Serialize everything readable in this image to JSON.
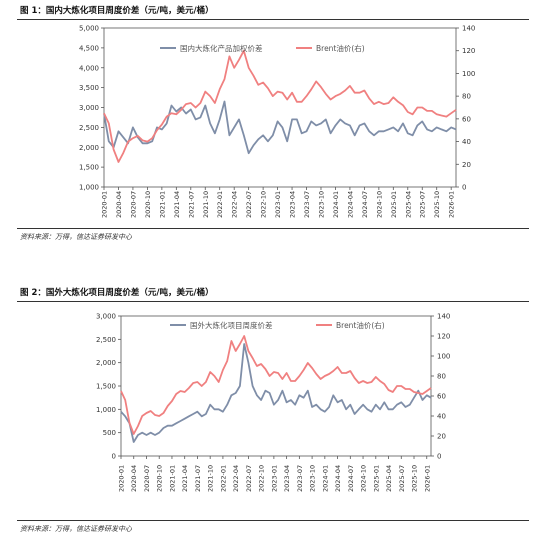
{
  "figures": [
    {
      "title": "图 1：国内大炼化项目周度价差（元/吨，美元/桶）",
      "source": "资料来源：万得，信达证券研发中心"
    },
    {
      "title": "图 2：国外大炼化项目周度价差（元/吨，美元/桶）",
      "source": "资料来源：万得，信达证券研发中心"
    }
  ],
  "chart_data": [
    {
      "type": "line",
      "title": "",
      "xlabel": "",
      "ylabel": "",
      "x_ticks": [
        "2020-01",
        "2020-04",
        "2020-07",
        "2020-10",
        "2021-01",
        "2021-04",
        "2021-07",
        "2021-10",
        "2022-01",
        "2022-04",
        "2022-07",
        "2022-10",
        "2023-01",
        "2023-04",
        "2023-07",
        "2023-10",
        "2024-01",
        "2024-04",
        "2024-07",
        "2024-10",
        "2025-01",
        "2025-04",
        "2025-07",
        "2025-10",
        "2026-01"
      ],
      "x_range": [
        "2020-01",
        "2026-02"
      ],
      "ylim_left": [
        1000,
        5000
      ],
      "yticks_left": [
        "1,000",
        "1,500",
        "2,000",
        "2,500",
        "3,000",
        "3,500",
        "4,000",
        "4,500",
        "5,000"
      ],
      "ylim_right": [
        0,
        140
      ],
      "yticks_right": [
        "0",
        "20",
        "40",
        "60",
        "80",
        "100",
        "120",
        "140"
      ],
      "grid": false,
      "legend": "top",
      "series": [
        {
          "name": "国内大炼化产品加权价差",
          "axis": "left",
          "color": "#7f8ea8",
          "x": [
            "2020-01",
            "2020-02",
            "2020-03",
            "2020-04",
            "2020-05",
            "2020-06",
            "2020-07",
            "2020-08",
            "2020-09",
            "2020-10",
            "2020-11",
            "2020-12",
            "2021-01",
            "2021-02",
            "2021-03",
            "2021-04",
            "2021-05",
            "2021-06",
            "2021-07",
            "2021-08",
            "2021-09",
            "2021-10",
            "2021-11",
            "2021-12",
            "2022-01",
            "2022-02",
            "2022-03",
            "2022-04",
            "2022-05",
            "2022-06",
            "2022-07",
            "2022-08",
            "2022-09",
            "2022-10",
            "2022-11",
            "2022-12",
            "2023-01",
            "2023-02",
            "2023-03",
            "2023-04",
            "2023-05",
            "2023-06",
            "2023-07",
            "2023-08",
            "2023-09",
            "2023-10",
            "2023-11",
            "2023-12",
            "2024-01",
            "2024-02",
            "2024-03",
            "2024-04",
            "2024-05",
            "2024-06",
            "2024-07",
            "2024-08",
            "2024-09",
            "2024-10",
            "2024-11",
            "2024-12",
            "2025-01",
            "2025-02",
            "2025-03",
            "2025-04",
            "2025-05",
            "2025-06",
            "2025-07",
            "2025-08",
            "2025-09",
            "2025-10",
            "2025-11",
            "2025-12",
            "2026-01",
            "2026-02"
          ],
          "values": [
            2850,
            2150,
            2000,
            2400,
            2250,
            2100,
            2500,
            2250,
            2100,
            2100,
            2150,
            2500,
            2450,
            2600,
            3050,
            2900,
            3000,
            2850,
            2950,
            2700,
            2750,
            3050,
            2600,
            2350,
            2700,
            3150,
            2300,
            2500,
            2700,
            2300,
            1850,
            2050,
            2200,
            2300,
            2150,
            2300,
            2650,
            2500,
            2150,
            2700,
            2700,
            2350,
            2400,
            2650,
            2550,
            2600,
            2700,
            2350,
            2550,
            2700,
            2600,
            2550,
            2300,
            2550,
            2600,
            2400,
            2300,
            2400,
            2400,
            2450,
            2500,
            2400,
            2600,
            2350,
            2300,
            2550,
            2650,
            2450,
            2400,
            2500,
            2450,
            2400,
            2500,
            2450
          ]
        },
        {
          "name": "Brent油价(右)",
          "axis": "right",
          "color": "#f08080",
          "x": [
            "2020-01",
            "2020-02",
            "2020-03",
            "2020-04",
            "2020-05",
            "2020-06",
            "2020-07",
            "2020-08",
            "2020-09",
            "2020-10",
            "2020-11",
            "2020-12",
            "2021-01",
            "2021-02",
            "2021-03",
            "2021-04",
            "2021-05",
            "2021-06",
            "2021-07",
            "2021-08",
            "2021-09",
            "2021-10",
            "2021-11",
            "2021-12",
            "2022-01",
            "2022-02",
            "2022-03",
            "2022-04",
            "2022-05",
            "2022-06",
            "2022-07",
            "2022-08",
            "2022-09",
            "2022-10",
            "2022-11",
            "2022-12",
            "2023-01",
            "2023-02",
            "2023-03",
            "2023-04",
            "2023-05",
            "2023-06",
            "2023-07",
            "2023-08",
            "2023-09",
            "2023-10",
            "2023-11",
            "2023-12",
            "2024-01",
            "2024-02",
            "2024-03",
            "2024-04",
            "2024-05",
            "2024-06",
            "2024-07",
            "2024-08",
            "2024-09",
            "2024-10",
            "2024-11",
            "2024-12",
            "2025-01",
            "2025-02",
            "2025-03",
            "2025-04",
            "2025-05",
            "2025-06",
            "2025-07",
            "2025-08",
            "2025-09",
            "2025-10",
            "2025-11",
            "2025-12",
            "2026-01",
            "2026-02"
          ],
          "values": [
            65,
            56,
            33,
            22,
            30,
            40,
            43,
            45,
            41,
            40,
            43,
            50,
            55,
            62,
            65,
            64,
            68,
            73,
            74,
            70,
            74,
            84,
            80,
            74,
            86,
            95,
            115,
            105,
            112,
            120,
            105,
            98,
            90,
            92,
            87,
            80,
            84,
            83,
            77,
            83,
            75,
            75,
            80,
            86,
            93,
            88,
            82,
            77,
            80,
            82,
            85,
            89,
            83,
            83,
            85,
            78,
            73,
            75,
            73,
            74,
            79,
            75,
            72,
            66,
            64,
            70,
            70,
            67,
            67,
            64,
            63,
            62,
            65,
            68
          ]
        }
      ]
    },
    {
      "type": "line",
      "title": "",
      "xlabel": "",
      "ylabel": "",
      "x_ticks": [
        "2020-01",
        "2020-04",
        "2020-07",
        "2020-10",
        "2021-01",
        "2021-04",
        "2021-07",
        "2021-10",
        "2022-01",
        "2022-04",
        "2022-07",
        "2022-10",
        "2023-01",
        "2023-04",
        "2023-07",
        "2023-10",
        "2024-01",
        "2024-04",
        "2024-07",
        "2024-10",
        "2025-01",
        "2025-04",
        "2025-07",
        "2025-10",
        "2026-01"
      ],
      "x_range": [
        "2020-01",
        "2026-02"
      ],
      "ylim_left": [
        0,
        3000
      ],
      "yticks_left": [
        "0",
        "500",
        "1,000",
        "1,500",
        "2,000",
        "2,500",
        "3,000"
      ],
      "ylim_right": [
        0,
        140
      ],
      "yticks_right": [
        "0",
        "20",
        "40",
        "60",
        "80",
        "100",
        "120",
        "140"
      ],
      "grid": false,
      "legend": "top",
      "series": [
        {
          "name": "国外大炼化项目周度价差",
          "axis": "left",
          "color": "#7f8ea8",
          "x": [
            "2020-01",
            "2020-02",
            "2020-03",
            "2020-04",
            "2020-05",
            "2020-06",
            "2020-07",
            "2020-08",
            "2020-09",
            "2020-10",
            "2020-11",
            "2020-12",
            "2021-01",
            "2021-02",
            "2021-03",
            "2021-04",
            "2021-05",
            "2021-06",
            "2021-07",
            "2021-08",
            "2021-09",
            "2021-10",
            "2021-11",
            "2021-12",
            "2022-01",
            "2022-02",
            "2022-03",
            "2022-04",
            "2022-05",
            "2022-06",
            "2022-07",
            "2022-08",
            "2022-09",
            "2022-10",
            "2022-11",
            "2022-12",
            "2023-01",
            "2023-02",
            "2023-03",
            "2023-04",
            "2023-05",
            "2023-06",
            "2023-07",
            "2023-08",
            "2023-09",
            "2023-10",
            "2023-11",
            "2023-12",
            "2024-01",
            "2024-02",
            "2024-03",
            "2024-04",
            "2024-05",
            "2024-06",
            "2024-07",
            "2024-08",
            "2024-09",
            "2024-10",
            "2024-11",
            "2024-12",
            "2025-01",
            "2025-02",
            "2025-03",
            "2025-04",
            "2025-05",
            "2025-06",
            "2025-07",
            "2025-08",
            "2025-09",
            "2025-10",
            "2025-11",
            "2025-12",
            "2026-01",
            "2026-02"
          ],
          "values": [
            950,
            850,
            700,
            300,
            450,
            500,
            450,
            500,
            450,
            500,
            600,
            650,
            650,
            700,
            750,
            800,
            850,
            900,
            950,
            850,
            900,
            1100,
            1000,
            1000,
            950,
            1100,
            1300,
            1350,
            1500,
            2400,
            2000,
            1500,
            1300,
            1200,
            1400,
            1350,
            1100,
            1200,
            1400,
            1150,
            1200,
            1100,
            1300,
            1250,
            1400,
            1050,
            1100,
            1000,
            950,
            1050,
            1300,
            1150,
            1200,
            1000,
            1100,
            900,
            1000,
            1100,
            1000,
            950,
            1100,
            1000,
            1150,
            1000,
            1000,
            1100,
            1150,
            1050,
            1100,
            1250,
            1400,
            1200,
            1300,
            1250
          ]
        },
        {
          "name": "Brent油价(右)",
          "axis": "right",
          "color": "#f08080",
          "x": [
            "2020-01",
            "2020-02",
            "2020-03",
            "2020-04",
            "2020-05",
            "2020-06",
            "2020-07",
            "2020-08",
            "2020-09",
            "2020-10",
            "2020-11",
            "2020-12",
            "2021-01",
            "2021-02",
            "2021-03",
            "2021-04",
            "2021-05",
            "2021-06",
            "2021-07",
            "2021-08",
            "2021-09",
            "2021-10",
            "2021-11",
            "2021-12",
            "2022-01",
            "2022-02",
            "2022-03",
            "2022-04",
            "2022-05",
            "2022-06",
            "2022-07",
            "2022-08",
            "2022-09",
            "2022-10",
            "2022-11",
            "2022-12",
            "2023-01",
            "2023-02",
            "2023-03",
            "2023-04",
            "2023-05",
            "2023-06",
            "2023-07",
            "2023-08",
            "2023-09",
            "2023-10",
            "2023-11",
            "2023-12",
            "2024-01",
            "2024-02",
            "2024-03",
            "2024-04",
            "2024-05",
            "2024-06",
            "2024-07",
            "2024-08",
            "2024-09",
            "2024-10",
            "2024-11",
            "2024-12",
            "2025-01",
            "2025-02",
            "2025-03",
            "2025-04",
            "2025-05",
            "2025-06",
            "2025-07",
            "2025-08",
            "2025-09",
            "2025-10",
            "2025-11",
            "2025-12",
            "2026-01",
            "2026-02"
          ],
          "values": [
            65,
            56,
            33,
            22,
            30,
            40,
            43,
            45,
            41,
            40,
            43,
            50,
            55,
            62,
            65,
            64,
            68,
            73,
            74,
            70,
            74,
            84,
            80,
            74,
            86,
            95,
            115,
            105,
            112,
            120,
            105,
            98,
            90,
            92,
            87,
            80,
            84,
            83,
            77,
            83,
            75,
            75,
            80,
            86,
            93,
            88,
            82,
            77,
            80,
            82,
            85,
            89,
            83,
            83,
            85,
            78,
            73,
            75,
            73,
            74,
            79,
            75,
            72,
            66,
            64,
            70,
            70,
            67,
            67,
            64,
            63,
            62,
            65,
            68
          ]
        }
      ]
    }
  ]
}
